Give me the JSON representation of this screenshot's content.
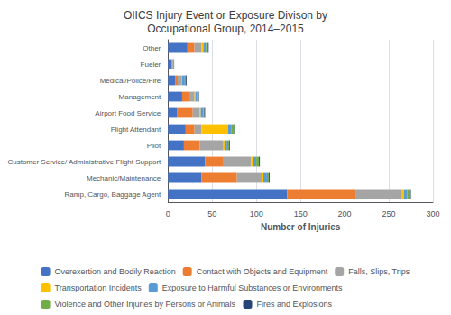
{
  "chart_data": {
    "type": "bar",
    "orientation": "horizontal",
    "stacked": true,
    "title": "OIICS Injury Event or Exposure Divison by\nOccupational Group, 2014–2015",
    "xlabel": "Number of Injuries",
    "categories": [
      "Ramp, Cargo, Baggage Agent",
      "Mechanic/Maintenance",
      "Customer Service/ Administrative Flight Support",
      "Pilot",
      "Flight Attendant",
      "Airport Food Service",
      "Management",
      "Medical/Police/Fire",
      "Fueler",
      "Other"
    ],
    "series": [
      {
        "name": "Overexertion and Bodily Reaction",
        "color": "#4472C4",
        "values": [
          135,
          38,
          42,
          18,
          20,
          10,
          16,
          8,
          4,
          22
        ]
      },
      {
        "name": "Contact with Objects and Equipment",
        "color": "#ED7D31",
        "values": [
          78,
          40,
          20,
          18,
          10,
          18,
          8,
          3,
          1,
          8
        ]
      },
      {
        "name": "Falls, Slips, Trips",
        "color": "#A5A5A5",
        "values": [
          52,
          28,
          32,
          26,
          8,
          8,
          6,
          4,
          1,
          8
        ]
      },
      {
        "name": "Transportation Incidents",
        "color": "#FFC000",
        "values": [
          2,
          2,
          2,
          2,
          30,
          1,
          1,
          1,
          0,
          2
        ]
      },
      {
        "name": "Exposure to Harmful Substances or Environments",
        "color": "#5B9BD5",
        "values": [
          4,
          4,
          4,
          3,
          4,
          3,
          2,
          3,
          1,
          3
        ]
      },
      {
        "name": "Violence and Other Injuries by Persons or Animals",
        "color": "#70AD47",
        "values": [
          3,
          2,
          3,
          2,
          3,
          1,
          1,
          1,
          0,
          2
        ]
      },
      {
        "name": "Fires and Explosions",
        "color": "#264478",
        "values": [
          1,
          1,
          1,
          1,
          1,
          1,
          1,
          1,
          0,
          1
        ]
      }
    ],
    "xlim": [
      0,
      300
    ],
    "xticks": [
      0,
      50,
      100,
      150,
      200,
      250,
      300
    ],
    "grid": true,
    "legend": "bottom"
  }
}
